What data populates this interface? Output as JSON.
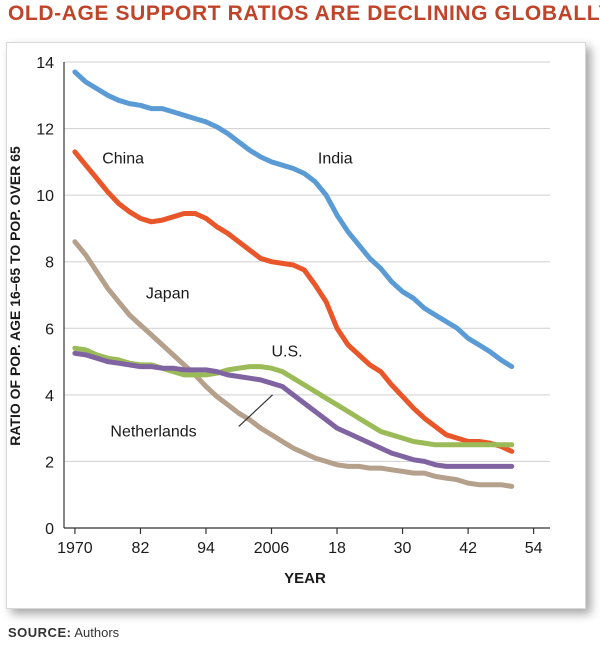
{
  "title": "OLD-AGE SUPPORT RATIOS ARE DECLINING GLOBALLY",
  "source_label": "SOURCE:",
  "source_text": "Authors",
  "chart_data": {
    "type": "line",
    "title": "OLD-AGE SUPPORT RATIOS ARE DECLINING GLOBALLY",
    "xlabel": "YEAR",
    "ylabel": "RATIO OF POP. AGE 16–65 TO POP. OVER 65",
    "xlim": [
      1968,
      2057
    ],
    "ylim": [
      0,
      14
    ],
    "x_ticks": [
      1970,
      1982,
      1994,
      2006,
      2018,
      2030,
      2042,
      2054
    ],
    "x_tick_labels": [
      "1970",
      "82",
      "94",
      "2006",
      "18",
      "30",
      "42",
      "54"
    ],
    "y_ticks": [
      0,
      2,
      4,
      6,
      8,
      10,
      12,
      14
    ],
    "y_tick_labels": [
      "0",
      "2",
      "4",
      "6",
      "8",
      "10",
      "12",
      "14"
    ],
    "grid": true,
    "series": [
      {
        "name": "India",
        "color": "#5b9bd5",
        "label": "India",
        "label_at": [
          2014.5,
          10.95
        ],
        "x": [
          1970,
          1972,
          1974,
          1976,
          1978,
          1980,
          1982,
          1984,
          1986,
          1988,
          1990,
          1992,
          1994,
          1996,
          1998,
          2000,
          2002,
          2004,
          2006,
          2008,
          2010,
          2012,
          2014,
          2016,
          2018,
          2020,
          2022,
          2024,
          2026,
          2028,
          2030,
          2032,
          2034,
          2036,
          2038,
          2040,
          2042,
          2044,
          2046,
          2048,
          2050
        ],
        "values": [
          13.7,
          13.4,
          13.2,
          13.0,
          12.85,
          12.75,
          12.7,
          12.6,
          12.6,
          12.5,
          12.4,
          12.3,
          12.2,
          12.05,
          11.85,
          11.6,
          11.35,
          11.15,
          11.0,
          10.9,
          10.8,
          10.65,
          10.4,
          10.0,
          9.4,
          8.9,
          8.5,
          8.1,
          7.8,
          7.4,
          7.1,
          6.9,
          6.6,
          6.4,
          6.2,
          6.0,
          5.7,
          5.5,
          5.3,
          5.05,
          4.85
        ]
      },
      {
        "name": "China",
        "color": "#e8562a",
        "label": "China",
        "label_at": [
          1975,
          10.95
        ],
        "x": [
          1970,
          1972,
          1974,
          1976,
          1978,
          1980,
          1982,
          1984,
          1986,
          1988,
          1990,
          1992,
          1994,
          1996,
          1998,
          2000,
          2002,
          2004,
          2006,
          2008,
          2010,
          2012,
          2014,
          2016,
          2018,
          2020,
          2022,
          2024,
          2026,
          2028,
          2030,
          2032,
          2034,
          2036,
          2038,
          2040,
          2042,
          2044,
          2046,
          2048,
          2050
        ],
        "values": [
          11.3,
          10.9,
          10.5,
          10.1,
          9.75,
          9.5,
          9.3,
          9.2,
          9.25,
          9.35,
          9.45,
          9.45,
          9.3,
          9.05,
          8.85,
          8.6,
          8.35,
          8.1,
          8.0,
          7.95,
          7.9,
          7.75,
          7.3,
          6.8,
          6.0,
          5.5,
          5.2,
          4.9,
          4.7,
          4.3,
          3.95,
          3.6,
          3.3,
          3.05,
          2.8,
          2.7,
          2.6,
          2.6,
          2.55,
          2.45,
          2.3
        ]
      },
      {
        "name": "Japan",
        "color": "#b5a08c",
        "label": "Japan",
        "label_at": [
          1983,
          6.9
        ],
        "x": [
          1970,
          1972,
          1974,
          1976,
          1978,
          1980,
          1982,
          1984,
          1986,
          1988,
          1990,
          1992,
          1994,
          1996,
          1998,
          2000,
          2002,
          2004,
          2006,
          2008,
          2010,
          2012,
          2014,
          2016,
          2018,
          2020,
          2022,
          2024,
          2026,
          2028,
          2030,
          2032,
          2034,
          2036,
          2038,
          2040,
          2042,
          2044,
          2046,
          2048,
          2050
        ],
        "values": [
          8.6,
          8.2,
          7.7,
          7.2,
          6.8,
          6.4,
          6.1,
          5.8,
          5.5,
          5.2,
          4.9,
          4.6,
          4.25,
          3.95,
          3.7,
          3.45,
          3.25,
          3.0,
          2.8,
          2.6,
          2.4,
          2.25,
          2.1,
          2.0,
          1.9,
          1.85,
          1.85,
          1.8,
          1.8,
          1.75,
          1.7,
          1.65,
          1.65,
          1.55,
          1.5,
          1.45,
          1.35,
          1.3,
          1.3,
          1.3,
          1.25
        ]
      },
      {
        "name": "U.S.",
        "color": "#9bbb59",
        "label": "U.S.",
        "label_at": [
          2006,
          5.15
        ],
        "x": [
          1970,
          1972,
          1974,
          1976,
          1978,
          1980,
          1982,
          1984,
          1986,
          1988,
          1990,
          1992,
          1994,
          1996,
          1998,
          2000,
          2002,
          2004,
          2006,
          2008,
          2010,
          2012,
          2014,
          2016,
          2018,
          2020,
          2022,
          2024,
          2026,
          2028,
          2030,
          2032,
          2034,
          2036,
          2038,
          2040,
          2042,
          2044,
          2046,
          2048,
          2050
        ],
        "values": [
          5.4,
          5.35,
          5.2,
          5.1,
          5.05,
          4.95,
          4.9,
          4.9,
          4.8,
          4.7,
          4.6,
          4.6,
          4.6,
          4.65,
          4.75,
          4.8,
          4.85,
          4.85,
          4.8,
          4.7,
          4.5,
          4.3,
          4.1,
          3.9,
          3.7,
          3.5,
          3.3,
          3.1,
          2.9,
          2.8,
          2.7,
          2.6,
          2.55,
          2.5,
          2.5,
          2.5,
          2.5,
          2.5,
          2.5,
          2.5,
          2.5
        ]
      },
      {
        "name": "Netherlands",
        "color": "#8064a2",
        "label": "Netherlands",
        "label_at": [
          1976.5,
          2.75
        ],
        "x": [
          1970,
          1972,
          1974,
          1976,
          1978,
          1980,
          1982,
          1984,
          1986,
          1988,
          1990,
          1992,
          1994,
          1996,
          1998,
          2000,
          2002,
          2004,
          2006,
          2008,
          2010,
          2012,
          2014,
          2016,
          2018,
          2020,
          2022,
          2024,
          2026,
          2028,
          2030,
          2032,
          2034,
          2036,
          2038,
          2040,
          2042,
          2044,
          2046,
          2048,
          2050
        ],
        "values": [
          5.25,
          5.2,
          5.1,
          5.0,
          4.95,
          4.9,
          4.85,
          4.85,
          4.8,
          4.8,
          4.75,
          4.75,
          4.75,
          4.7,
          4.6,
          4.55,
          4.5,
          4.45,
          4.35,
          4.25,
          4.0,
          3.75,
          3.5,
          3.25,
          3.0,
          2.85,
          2.7,
          2.55,
          2.4,
          2.25,
          2.15,
          2.05,
          2.0,
          1.9,
          1.85,
          1.85,
          1.85,
          1.85,
          1.85,
          1.85,
          1.85
        ]
      }
    ],
    "annotations": [
      {
        "text": "Netherlands",
        "pointer_from": [
          2000,
          3.05
        ],
        "pointer_to": [
          2006.2,
          4.0
        ]
      }
    ]
  }
}
